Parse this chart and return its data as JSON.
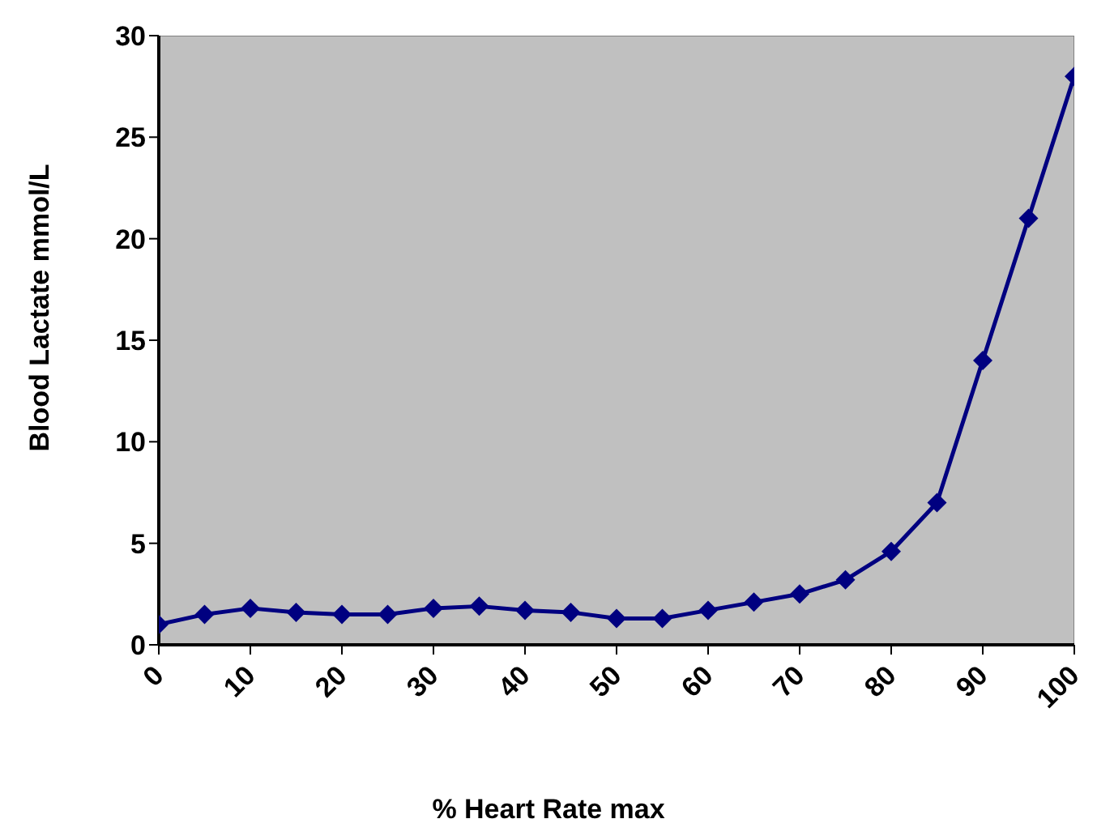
{
  "chart_data": {
    "type": "line",
    "xlabel": "% Heart Rate max",
    "ylabel": "Blood Lactate mmol/L",
    "x": [
      0,
      5,
      10,
      15,
      20,
      25,
      30,
      35,
      40,
      45,
      50,
      55,
      60,
      65,
      70,
      75,
      80,
      85,
      90,
      95,
      100
    ],
    "series": [
      {
        "color": "#000080",
        "values": [
          1.0,
          1.5,
          1.8,
          1.6,
          1.5,
          1.5,
          1.8,
          1.9,
          1.7,
          1.6,
          1.3,
          1.3,
          1.7,
          2.1,
          2.5,
          3.2,
          4.6,
          7.0,
          14.0,
          21.0,
          28.0
        ]
      }
    ],
    "xlim": [
      0,
      100
    ],
    "xticks": [
      0,
      10,
      20,
      30,
      40,
      50,
      60,
      70,
      80,
      90,
      100
    ],
    "ylim": [
      0,
      30
    ],
    "yticks": [
      0,
      5,
      10,
      15,
      20,
      25,
      30
    ],
    "marker": "diamond",
    "line_style": "solid"
  }
}
